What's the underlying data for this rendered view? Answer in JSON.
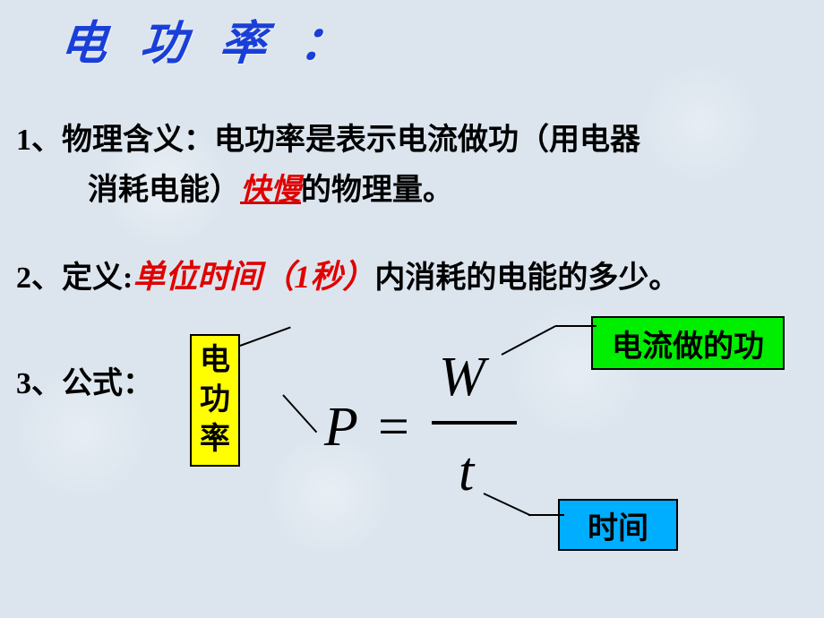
{
  "title": "电 功 率 ：",
  "point1": {
    "num": "1、",
    "label": "物理含义：",
    "text_before": "电功率是表示电流做功（用电器",
    "text_line2_before": "消耗电能）",
    "emphasis": "快慢",
    "text_line2_after": "的物理量。"
  },
  "point2": {
    "num": "2、",
    "label": "定义",
    "colon": ":",
    "emphasis": "单位时间（1秒）",
    "text_after": "内消耗的电能的多少。"
  },
  "point3": {
    "num": "3、",
    "label": "公式："
  },
  "boxes": {
    "yellow_l1": "电",
    "yellow_l2": "功",
    "yellow_l3": "率",
    "green": "电流做的功",
    "blue": "时间"
  },
  "formula": {
    "P": "P",
    "eq": "=",
    "W": "W",
    "t": "t"
  },
  "colors": {
    "bg": "#dce5ee",
    "title": "#1a3fd8",
    "emph": "#e00000",
    "yellow": "#ffff00",
    "green": "#00ee00",
    "blue": "#00aeff"
  }
}
